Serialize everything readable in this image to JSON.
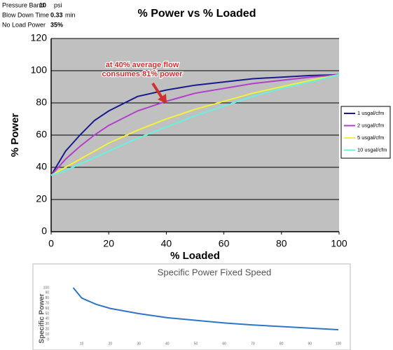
{
  "parameters": {
    "rows": [
      [
        "Pressure Band",
        "10",
        "psi"
      ],
      [
        "Blow Down Time",
        "0.33",
        "min"
      ],
      [
        "No Load Power",
        "35%"
      ]
    ]
  },
  "chart_data": [
    {
      "type": "line",
      "title": "% Power vs % Loaded",
      "xlabel": "% Loaded",
      "ylabel": "% Power",
      "annotation": [
        "at 40% average flow",
        "consumes 81% power"
      ],
      "x": [
        0,
        5,
        10,
        15,
        20,
        30,
        40,
        50,
        60,
        70,
        80,
        90,
        100
      ],
      "series": [
        {
          "name": "1 usgal/cfm",
          "color": "#1a1a8c",
          "values": [
            35,
            50,
            60,
            69,
            75,
            84,
            88,
            91,
            93,
            95,
            96,
            97,
            97.5
          ]
        },
        {
          "name": "2 usgal/cfm",
          "color": "#b23fc9",
          "values": [
            35,
            45,
            53,
            60,
            66,
            75,
            81,
            86,
            89,
            92,
            94,
            96,
            97.5
          ]
        },
        {
          "name": "5 usgal/cfm",
          "color": "#f2f23a",
          "values": [
            35,
            40,
            45,
            50,
            55,
            63,
            70,
            76,
            81,
            86,
            90,
            94,
            97.5
          ]
        },
        {
          "name": "10 usgal/cfm",
          "color": "#66f2e0",
          "values": [
            35,
            38,
            42,
            46,
            50,
            58,
            65,
            72,
            78,
            84,
            89,
            93,
            97.5
          ]
        }
      ],
      "xlim": [
        0,
        100
      ],
      "xticks": [
        0,
        20,
        40,
        60,
        80,
        100
      ],
      "ylim": [
        0,
        120
      ],
      "yticks": [
        0,
        20,
        40,
        60,
        80,
        100,
        120
      ],
      "grid": true,
      "legend": "right",
      "background": "#c0c0c0"
    },
    {
      "type": "line",
      "title": "Specific Power Fixed Speed",
      "ylabel": "Specific Power",
      "x": [
        7,
        10,
        15,
        20,
        30,
        40,
        50,
        60,
        70,
        80,
        90,
        100
      ],
      "values": [
        100,
        80,
        68,
        60,
        50,
        42,
        37,
        32,
        28,
        25,
        22,
        19
      ],
      "color": "#2e75c8",
      "xlim": [
        0,
        100
      ],
      "xticks": [
        10,
        20,
        30,
        40,
        50,
        60,
        70,
        80,
        90,
        100
      ],
      "ylim": [
        0,
        100
      ],
      "yticks": [
        0,
        10,
        20,
        30,
        40,
        50,
        60,
        70,
        80,
        90,
        100
      ],
      "grid": false
    }
  ]
}
